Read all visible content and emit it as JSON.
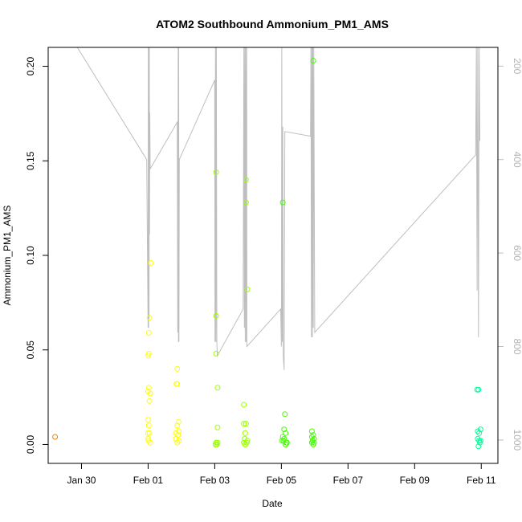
{
  "chart_data": {
    "type": "scatter",
    "title": "ATOM2 Southbound Ammonium_PM1_AMS",
    "xlabel": "Date",
    "ylabel": "Ammonium_PM1_AMS",
    "x_ticks": [
      "Jan 30",
      "Feb 01",
      "Feb 03",
      "Feb 05",
      "Feb 07",
      "Feb 09",
      "Feb 11"
    ],
    "y_ticks": [
      "0.00",
      "0.05",
      "0.10",
      "0.15",
      "0.20"
    ],
    "y2_ticks": [
      "200",
      "400",
      "600",
      "800",
      "1000"
    ],
    "xlim": [
      "2017-01-29T00:00",
      "2017-02-11T12:00"
    ],
    "ylim": [
      -0.01,
      0.21
    ],
    "y2lim": [
      1050,
      160
    ],
    "y2_reversed": true,
    "y2_color": "#bebebe",
    "series": [
      {
        "color": "#ff7f00",
        "points": [
          [
            "2017-01-29T05:00",
            0.004
          ]
        ]
      },
      {
        "color": "#ffff00",
        "points": [
          [
            "2017-02-01T02:00",
            0.096
          ],
          [
            "2017-02-01T01:00",
            0.067
          ],
          [
            "2017-02-01T00:30",
            0.059
          ],
          [
            "2017-02-01T00:30",
            0.048
          ],
          [
            "2017-02-01T00:00",
            0.047
          ],
          [
            "2017-02-01T00:30",
            0.03
          ],
          [
            "2017-02-01T00:00",
            0.028
          ],
          [
            "2017-02-01T01:30",
            0.027
          ],
          [
            "2017-02-01T01:00",
            0.023
          ],
          [
            "2017-02-01T00:00",
            0.013
          ],
          [
            "2017-02-01T00:30",
            0.01
          ],
          [
            "2017-02-01T00:00",
            0.006
          ],
          [
            "2017-02-01T01:00",
            0.006
          ],
          [
            "2017-02-01T00:30",
            0.002
          ],
          [
            "2017-02-01T01:30",
            0.001
          ],
          [
            "2017-02-01T00:00",
            0.003
          ],
          [
            "2017-02-01T21:00",
            0.04
          ],
          [
            "2017-02-01T21:00",
            0.032
          ],
          [
            "2017-02-01T20:30",
            0.032
          ],
          [
            "2017-02-01T22:00",
            0.012
          ],
          [
            "2017-02-01T21:00",
            0.01
          ],
          [
            "2017-02-01T20:00",
            0.006
          ],
          [
            "2017-02-01T22:00",
            0.007
          ],
          [
            "2017-02-01T21:30",
            0.005
          ],
          [
            "2017-02-01T20:00",
            0.003
          ],
          [
            "2017-02-01T21:00",
            0.001
          ],
          [
            "2017-02-01T22:00",
            0.002
          ]
        ]
      },
      {
        "color": "#9aff00",
        "points": [
          [
            "2017-02-03T01:00",
            0.144
          ],
          [
            "2017-02-03T01:00",
            0.068
          ],
          [
            "2017-02-03T01:00",
            0.048
          ],
          [
            "2017-02-03T02:00",
            0.03
          ],
          [
            "2017-02-03T02:00",
            0.009
          ],
          [
            "2017-02-03T01:00",
            0.001
          ],
          [
            "2017-02-03T00:30",
            0.0
          ],
          [
            "2017-02-03T01:30",
            0.0
          ],
          [
            "2017-02-03T02:00",
            0.001
          ],
          [
            "2017-02-03T21:00",
            0.021
          ],
          [
            "2017-02-03T21:00",
            0.011
          ],
          [
            "2017-02-03T22:30",
            0.011
          ],
          [
            "2017-02-03T22:00",
            0.006
          ],
          [
            "2017-02-03T21:30",
            0.003
          ],
          [
            "2017-02-03T21:00",
            0.001
          ],
          [
            "2017-02-03T22:00",
            0.0
          ],
          [
            "2017-02-03T23:00",
            0.001
          ],
          [
            "2017-02-03T23:30",
            0.002
          ],
          [
            "2017-02-03T22:30",
            0.14
          ],
          [
            "2017-02-03T22:30",
            0.128
          ],
          [
            "2017-02-03T23:30",
            0.082
          ]
        ]
      },
      {
        "color": "#44ff00",
        "points": [
          [
            "2017-02-05T01:00",
            0.128
          ],
          [
            "2017-02-05T02:30",
            0.016
          ],
          [
            "2017-02-05T02:00",
            0.008
          ],
          [
            "2017-02-05T03:00",
            0.006
          ],
          [
            "2017-02-05T01:00",
            0.004
          ],
          [
            "2017-02-05T02:00",
            0.003
          ],
          [
            "2017-02-05T00:30",
            0.002
          ],
          [
            "2017-02-05T03:30",
            0.001
          ],
          [
            "2017-02-05T04:00",
            0.001
          ],
          [
            "2017-02-05T01:30",
            0.002
          ],
          [
            "2017-02-05T03:00",
            0.0
          ],
          [
            "2017-02-05T23:00",
            0.203
          ],
          [
            "2017-02-05T22:00",
            0.007
          ],
          [
            "2017-02-05T23:00",
            0.005
          ],
          [
            "2017-02-05T22:00",
            0.004
          ],
          [
            "2017-02-05T23:30",
            0.003
          ],
          [
            "2017-02-05T22:30",
            0.002
          ],
          [
            "2017-02-05T22:00",
            0.001
          ],
          [
            "2017-02-05T23:30",
            0.001
          ],
          [
            "2017-02-05T23:00",
            0.0
          ]
        ]
      },
      {
        "color": "#00ff9a",
        "points": [
          [
            "2017-02-10T21:00",
            0.029
          ],
          [
            "2017-02-10T22:00",
            0.029
          ],
          [
            "2017-02-10T21:30",
            0.007
          ],
          [
            "2017-02-10T23:30",
            0.008
          ],
          [
            "2017-02-10T22:30",
            0.006
          ],
          [
            "2017-02-10T21:30",
            0.003
          ],
          [
            "2017-02-10T22:30",
            0.002
          ],
          [
            "2017-02-10T23:30",
            0.002
          ],
          [
            "2017-02-10T23:00",
            0.001
          ],
          [
            "2017-02-10T22:00",
            -0.001
          ]
        ]
      }
    ],
    "altitude_track": {
      "color": "#bebebe",
      "points": [
        [
          "2017-01-29T21:00",
          160
        ],
        [
          "2017-01-31T23:00",
          400
        ],
        [
          "2017-02-01T00:00",
          760
        ],
        [
          "2017-02-01T00:10",
          160
        ],
        [
          "2017-02-01T00:20",
          760
        ],
        [
          "2017-02-01T00:30",
          160
        ],
        [
          "2017-02-01T00:40",
          740
        ],
        [
          "2017-02-01T00:50",
          160
        ],
        [
          "2017-02-01T01:00",
          560
        ],
        [
          "2017-02-01T01:10",
          300
        ],
        [
          "2017-02-01T01:30",
          420
        ],
        [
          "2017-02-01T21:00",
          320
        ],
        [
          "2017-02-01T21:20",
          770
        ],
        [
          "2017-02-01T21:40",
          160
        ],
        [
          "2017-02-01T21:50",
          790
        ],
        [
          "2017-02-01T22:00",
          160
        ],
        [
          "2017-02-01T22:10",
          790
        ],
        [
          "2017-02-01T22:30",
          400
        ],
        [
          "2017-02-03T00:00",
          230
        ],
        [
          "2017-02-03T00:10",
          790
        ],
        [
          "2017-02-03T00:30",
          160
        ],
        [
          "2017-02-03T00:50",
          790
        ],
        [
          "2017-02-03T01:10",
          160
        ],
        [
          "2017-02-03T01:30",
          790
        ],
        [
          "2017-02-03T01:50",
          820
        ],
        [
          "2017-02-03T20:30",
          720
        ],
        [
          "2017-02-03T21:00",
          160
        ],
        [
          "2017-02-03T21:20",
          760
        ],
        [
          "2017-02-03T21:40",
          160
        ],
        [
          "2017-02-03T22:00",
          790
        ],
        [
          "2017-02-03T22:20",
          160
        ],
        [
          "2017-02-03T22:40",
          790
        ],
        [
          "2017-02-03T23:00",
          160
        ],
        [
          "2017-02-03T23:10",
          800
        ],
        [
          "2017-02-04T23:30",
          720
        ],
        [
          "2017-02-05T00:00",
          800
        ],
        [
          "2017-02-05T00:20",
          160
        ],
        [
          "2017-02-05T00:40",
          790
        ],
        [
          "2017-02-05T01:00",
          330
        ],
        [
          "2017-02-05T01:20",
          820
        ],
        [
          "2017-02-05T02:00",
          850
        ],
        [
          "2017-02-05T02:30",
          340
        ],
        [
          "2017-02-05T21:00",
          350
        ],
        [
          "2017-02-05T21:20",
          160
        ],
        [
          "2017-02-05T21:40",
          780
        ],
        [
          "2017-02-05T22:00",
          160
        ],
        [
          "2017-02-05T22:20",
          780
        ],
        [
          "2017-02-05T22:40",
          160
        ],
        [
          "2017-02-05T23:00",
          760
        ],
        [
          "2017-02-05T23:20",
          160
        ],
        [
          "2017-02-06T00:00",
          770
        ],
        [
          "2017-02-10T20:00",
          390
        ],
        [
          "2017-02-10T20:30",
          160
        ],
        [
          "2017-02-10T21:00",
          680
        ],
        [
          "2017-02-10T21:30",
          160
        ],
        [
          "2017-02-10T22:00",
          780
        ],
        [
          "2017-02-10T22:30",
          160
        ],
        [
          "2017-02-10T23:00",
          360
        ]
      ]
    },
    "grid": false,
    "legend": "none"
  }
}
